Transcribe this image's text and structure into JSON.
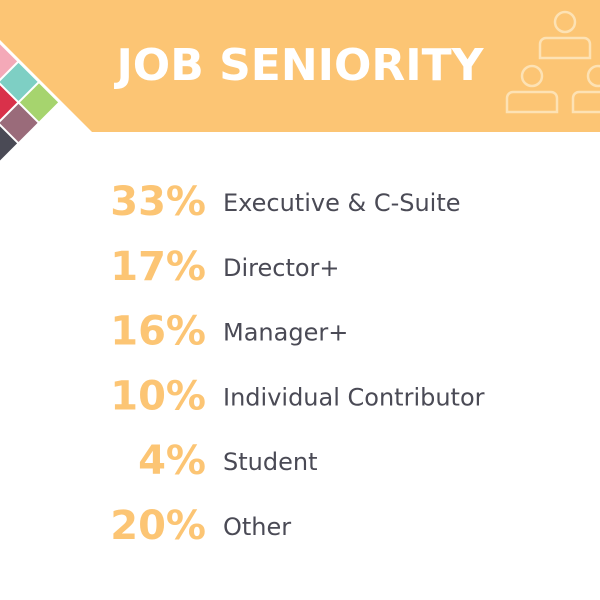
{
  "header": {
    "title": "JOB SENIORITY"
  },
  "items": [
    {
      "percent": "33%",
      "label": "Executive & C-Suite"
    },
    {
      "percent": "17%",
      "label": "Director+"
    },
    {
      "percent": "16%",
      "label": "Manager+"
    },
    {
      "percent": "10%",
      "label": "Individual Contributor"
    },
    {
      "percent": "4%",
      "label": "Student"
    },
    {
      "percent": "20%",
      "label": "Other"
    }
  ]
}
